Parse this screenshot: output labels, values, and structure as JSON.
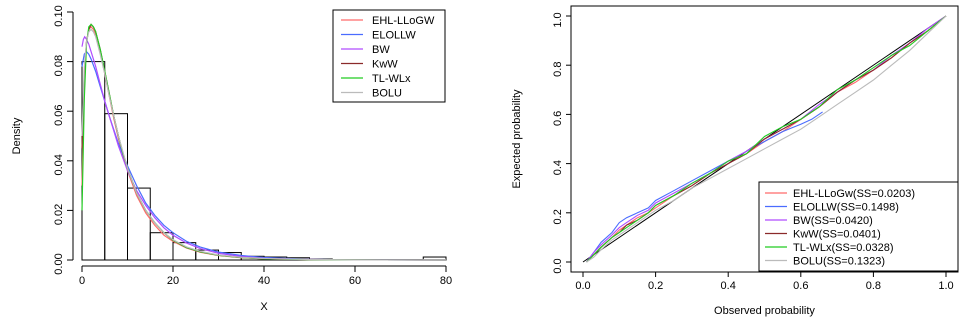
{
  "chart_data": [
    {
      "type": "bar",
      "xlabel": "X",
      "ylabel": "Density",
      "xlim": [
        0,
        80
      ],
      "ylim": [
        0,
        0.1
      ],
      "x_ticks": [
        "0",
        "20",
        "40",
        "60",
        "80"
      ],
      "y_ticks": [
        "0.00",
        "0.02",
        "0.04",
        "0.06",
        "0.08",
        "0.10"
      ],
      "histogram": {
        "bin_edges": [
          0,
          5,
          10,
          15,
          20,
          25,
          30,
          35,
          40,
          45,
          50,
          55,
          60,
          65,
          70,
          75,
          80
        ],
        "values": [
          0.08,
          0.059,
          0.029,
          0.011,
          0.007,
          0.004,
          0.003,
          0.0015,
          0.0012,
          0.0009,
          0.0004,
          0.0002,
          0.0002,
          0.0002,
          0.0002,
          0.0012
        ]
      },
      "legend": {
        "position": "top-right",
        "entries": [
          {
            "label": "EHL-LLoGW",
            "color": "#ff6b6b"
          },
          {
            "label": "ELOLLW",
            "color": "#4a6cff"
          },
          {
            "label": "BW",
            "color": "#b04cff"
          },
          {
            "label": "KwW",
            "color": "#8b2a2a"
          },
          {
            "label": "TL-WLx",
            "color": "#22cc22"
          },
          {
            "label": "BOLU",
            "color": "#bbbbbb"
          }
        ]
      },
      "series": [
        {
          "name": "EHL-LLoGW",
          "x": [
            0,
            0.5,
            1,
            1.5,
            2,
            2.5,
            3,
            4,
            5,
            6,
            7,
            8,
            9,
            10,
            12,
            14,
            16,
            18,
            20,
            23,
            26,
            30,
            35,
            40,
            45,
            50,
            60,
            70,
            80
          ],
          "y": [
            0.03,
            0.07,
            0.088,
            0.093,
            0.094,
            0.093,
            0.091,
            0.084,
            0.075,
            0.066,
            0.057,
            0.049,
            0.042,
            0.036,
            0.026,
            0.019,
            0.014,
            0.01,
            0.0075,
            0.0048,
            0.0031,
            0.0018,
            0.0009,
            0.0005,
            0.0003,
            0.0002,
            0.0001,
            5e-05,
            2e-05
          ]
        },
        {
          "name": "ELOLLW",
          "x": [
            0,
            0.5,
            1,
            1.5,
            2,
            3,
            4,
            5,
            6,
            8,
            10,
            12,
            14,
            16,
            18,
            20,
            23,
            26,
            30,
            35,
            40,
            50,
            60,
            80
          ],
          "y": [
            0.078,
            0.083,
            0.084,
            0.083,
            0.081,
            0.076,
            0.07,
            0.064,
            0.058,
            0.047,
            0.038,
            0.03,
            0.023,
            0.018,
            0.014,
            0.011,
            0.0075,
            0.0052,
            0.0032,
            0.0018,
            0.001,
            0.0003,
            0.0001,
            2e-05
          ]
        },
        {
          "name": "BW",
          "x": [
            0,
            0.3,
            0.6,
            1,
            1.5,
            2,
            3,
            4,
            5,
            6,
            8,
            10,
            12,
            14,
            16,
            18,
            20,
            23,
            26,
            30,
            35,
            40,
            50,
            60,
            80
          ],
          "y": [
            0.086,
            0.089,
            0.09,
            0.089,
            0.087,
            0.084,
            0.078,
            0.071,
            0.064,
            0.058,
            0.046,
            0.036,
            0.028,
            0.022,
            0.017,
            0.013,
            0.01,
            0.0068,
            0.0046,
            0.0027,
            0.0014,
            0.0007,
            0.0002,
            5e-05,
            1e-05
          ]
        },
        {
          "name": "KwW",
          "x": [
            0,
            0.5,
            1,
            1.5,
            2,
            2.5,
            3,
            4,
            5,
            6,
            7,
            8,
            9,
            10,
            12,
            14,
            16,
            18,
            20,
            23,
            26,
            30,
            35,
            40,
            50,
            60,
            80
          ],
          "y": [
            0.045,
            0.075,
            0.088,
            0.093,
            0.095,
            0.094,
            0.092,
            0.085,
            0.076,
            0.067,
            0.058,
            0.05,
            0.043,
            0.037,
            0.027,
            0.02,
            0.015,
            0.011,
            0.008,
            0.005,
            0.0033,
            0.0019,
            0.001,
            0.0005,
            0.00015,
            5e-05,
            1e-05
          ]
        },
        {
          "name": "TL-WLx",
          "x": [
            0,
            0.5,
            1,
            1.5,
            2,
            2.5,
            3,
            4,
            5,
            6,
            7,
            8,
            9,
            10,
            12,
            14,
            16,
            18,
            20,
            23,
            26,
            30,
            35,
            40,
            50,
            60,
            80
          ],
          "y": [
            0.02,
            0.065,
            0.087,
            0.094,
            0.095,
            0.094,
            0.092,
            0.085,
            0.076,
            0.067,
            0.058,
            0.05,
            0.043,
            0.037,
            0.027,
            0.02,
            0.015,
            0.011,
            0.008,
            0.005,
            0.0033,
            0.0019,
            0.001,
            0.0005,
            0.00015,
            5e-05,
            1e-05
          ]
        },
        {
          "name": "BOLU",
          "x": [
            0,
            0.5,
            1,
            1.5,
            2,
            2.5,
            3,
            4,
            5,
            6,
            7,
            8,
            10,
            12,
            14,
            16,
            18,
            20,
            23,
            26,
            30,
            35,
            40,
            50,
            60,
            80
          ],
          "y": [
            0.05,
            0.078,
            0.088,
            0.092,
            0.093,
            0.092,
            0.09,
            0.083,
            0.075,
            0.066,
            0.058,
            0.05,
            0.037,
            0.027,
            0.02,
            0.015,
            0.011,
            0.0082,
            0.0053,
            0.0035,
            0.002,
            0.0011,
            0.0006,
            0.0002,
            6e-05,
            1e-05
          ]
        }
      ]
    },
    {
      "type": "line",
      "xlabel": "Observed probability",
      "ylabel": "Expected probability",
      "xlim": [
        0,
        1
      ],
      "ylim": [
        0,
        1
      ],
      "x_ticks": [
        "0.0",
        "0.2",
        "0.4",
        "0.6",
        "0.8",
        "1.0"
      ],
      "y_ticks": [
        "0.0",
        "0.2",
        "0.4",
        "0.6",
        "0.8",
        "1.0"
      ],
      "legend": {
        "position": "bottom-right",
        "entries": [
          {
            "label": "EHL-LLoGw(SS=0.0203)",
            "color": "#ff6b6b"
          },
          {
            "label": "ELOLLW(SS=0.1498)",
            "color": "#4a6cff"
          },
          {
            "label": "BW(SS=0.0420)",
            "color": "#b04cff"
          },
          {
            "label": "KwW(SS=0.0401)",
            "color": "#8b2a2a"
          },
          {
            "label": "TL-WLx(SS=0.0328)",
            "color": "#22cc22"
          },
          {
            "label": "BOLU(SS=0.1323)",
            "color": "#bbbbbb"
          }
        ]
      },
      "diagonal": {
        "x": [
          0,
          1
        ],
        "y": [
          0,
          1
        ]
      },
      "series": [
        {
          "name": "EHL-LLoGw(SS=0.0203)",
          "x": [
            0.01,
            0.03,
            0.05,
            0.08,
            0.1,
            0.12,
            0.15,
            0.18,
            0.2,
            0.25,
            0.3,
            0.35,
            0.4,
            0.45,
            0.5,
            0.55,
            0.6,
            0.65,
            0.7,
            0.75,
            0.8,
            0.85,
            0.9,
            0.95,
            1.0
          ],
          "y": [
            0.0,
            0.03,
            0.06,
            0.1,
            0.13,
            0.15,
            0.18,
            0.2,
            0.22,
            0.27,
            0.31,
            0.36,
            0.41,
            0.44,
            0.49,
            0.53,
            0.58,
            0.63,
            0.69,
            0.73,
            0.78,
            0.83,
            0.89,
            0.94,
            1.0
          ]
        },
        {
          "name": "ELOLLW(SS=0.1498)",
          "x": [
            0.01,
            0.03,
            0.05,
            0.08,
            0.1,
            0.12,
            0.15,
            0.18,
            0.2,
            0.25,
            0.3,
            0.35,
            0.4,
            0.45,
            0.5,
            0.55,
            0.6,
            0.63,
            0.66
          ],
          "y": [
            0.0,
            0.04,
            0.08,
            0.12,
            0.16,
            0.18,
            0.2,
            0.22,
            0.25,
            0.29,
            0.33,
            0.37,
            0.41,
            0.45,
            0.49,
            0.53,
            0.56,
            0.58,
            0.61
          ]
        },
        {
          "name": "BW(SS=0.0420)",
          "x": [
            0.01,
            0.03,
            0.05,
            0.08,
            0.1,
            0.12,
            0.15,
            0.18,
            0.2,
            0.25,
            0.3,
            0.35,
            0.4,
            0.45,
            0.5,
            0.55,
            0.6,
            0.65,
            0.7,
            0.75,
            0.8,
            0.85,
            0.9,
            0.95,
            1.0
          ],
          "y": [
            0.0,
            0.04,
            0.07,
            0.11,
            0.14,
            0.16,
            0.19,
            0.21,
            0.24,
            0.28,
            0.32,
            0.36,
            0.41,
            0.45,
            0.5,
            0.54,
            0.58,
            0.64,
            0.69,
            0.74,
            0.78,
            0.84,
            0.89,
            0.95,
            1.0
          ]
        },
        {
          "name": "KwW(SS=0.0401)",
          "x": [
            0.01,
            0.03,
            0.05,
            0.08,
            0.1,
            0.12,
            0.15,
            0.18,
            0.2,
            0.25,
            0.3,
            0.35,
            0.4,
            0.45,
            0.5,
            0.55,
            0.6,
            0.65,
            0.7,
            0.75,
            0.8,
            0.85,
            0.9,
            0.95,
            1.0
          ],
          "y": [
            0.0,
            0.03,
            0.06,
            0.1,
            0.12,
            0.15,
            0.17,
            0.2,
            0.23,
            0.27,
            0.31,
            0.36,
            0.4,
            0.44,
            0.5,
            0.54,
            0.58,
            0.63,
            0.69,
            0.74,
            0.78,
            0.83,
            0.89,
            0.94,
            1.0
          ]
        },
        {
          "name": "TL-WLx(SS=0.0328)",
          "x": [
            0.01,
            0.03,
            0.05,
            0.08,
            0.1,
            0.12,
            0.15,
            0.18,
            0.2,
            0.25,
            0.3,
            0.35,
            0.4,
            0.45,
            0.5,
            0.55,
            0.6,
            0.65,
            0.7,
            0.75,
            0.8,
            0.85,
            0.9,
            0.95,
            1.0
          ],
          "y": [
            0.0,
            0.03,
            0.06,
            0.1,
            0.12,
            0.14,
            0.17,
            0.2,
            0.23,
            0.27,
            0.32,
            0.36,
            0.41,
            0.44,
            0.51,
            0.55,
            0.58,
            0.63,
            0.7,
            0.74,
            0.79,
            0.84,
            0.88,
            0.94,
            1.0
          ]
        },
        {
          "name": "BOLU(SS=0.1323)",
          "x": [
            0.01,
            0.03,
            0.05,
            0.08,
            0.1,
            0.12,
            0.15,
            0.18,
            0.2,
            0.25,
            0.3,
            0.35,
            0.4,
            0.45,
            0.5,
            0.55,
            0.6,
            0.65,
            0.7,
            0.75,
            0.8,
            0.85,
            0.9,
            0.95,
            1.0
          ],
          "y": [
            0.0,
            0.02,
            0.05,
            0.09,
            0.11,
            0.13,
            0.16,
            0.19,
            0.21,
            0.25,
            0.3,
            0.34,
            0.38,
            0.42,
            0.46,
            0.5,
            0.54,
            0.59,
            0.64,
            0.69,
            0.74,
            0.8,
            0.86,
            0.93,
            1.0
          ]
        }
      ]
    }
  ]
}
